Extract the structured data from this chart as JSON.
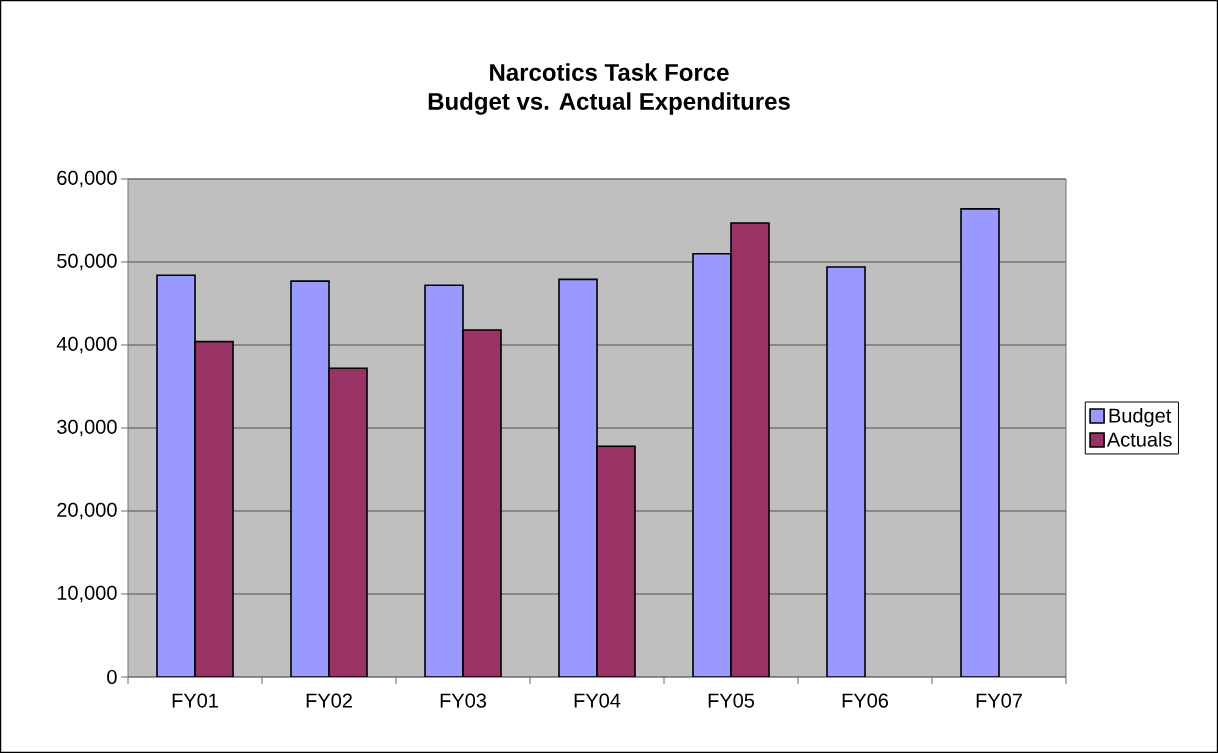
{
  "chart_data": {
    "type": "bar",
    "title": "Narcotics Task Force",
    "subtitle": "Budget vs. Actual Expenditures",
    "categories": [
      "FY01",
      "FY02",
      "FY03",
      "FY04",
      "FY05",
      "FY06",
      "FY07"
    ],
    "series": [
      {
        "name": "Budget",
        "color": "#9999ff",
        "values": [
          48400,
          47700,
          47200,
          47900,
          51000,
          49400,
          56400
        ]
      },
      {
        "name": "Actuals",
        "color": "#993366",
        "values": [
          40400,
          37200,
          41800,
          27800,
          54700,
          null,
          null
        ]
      }
    ],
    "ylim": [
      0,
      60000
    ],
    "yticks": [
      0,
      {
        "value": 10000,
        "label": "10,000"
      },
      {
        "value": 20000,
        "label": "20,000"
      },
      {
        "value": 30000,
        "label": "30,000"
      },
      {
        "value": 40000,
        "label": "40,000"
      },
      {
        "value": 50000,
        "label": "50,000"
      },
      {
        "value": 60000,
        "label": "60,000"
      }
    ],
    "grid": "y",
    "legend": "right"
  }
}
